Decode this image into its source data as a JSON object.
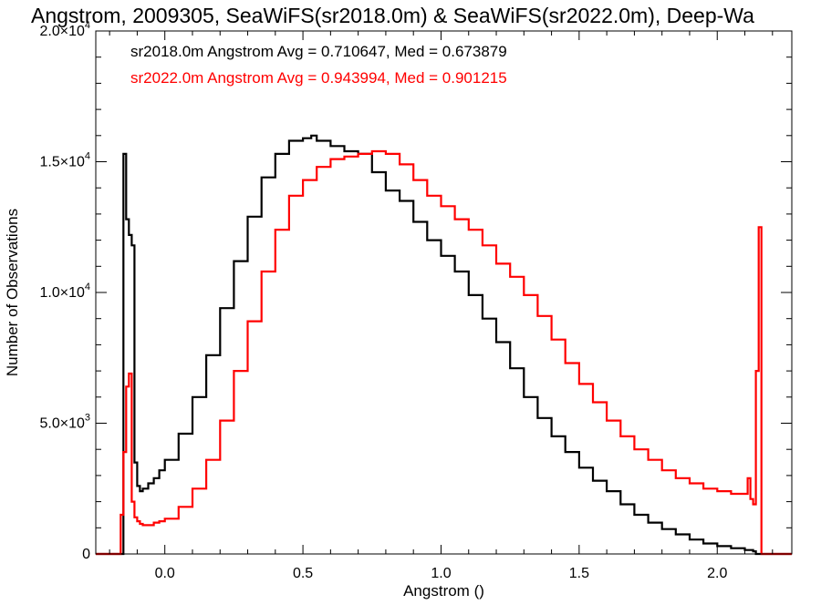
{
  "chart_data": {
    "type": "line",
    "title": "Angstrom, 2009305, SeaWiFS(sr2018.0m) & SeaWiFS(sr2022.0m), Deep-Wa",
    "xlabel": "Angstrom ()",
    "ylabel": "Number of Observations",
    "xlim": [
      -0.25,
      2.27
    ],
    "ylim": [
      0,
      20000
    ],
    "x_ticks": [
      {
        "value": 0.0,
        "label": "0.0"
      },
      {
        "value": 0.5,
        "label": "0.5"
      },
      {
        "value": 1.0,
        "label": "1.0"
      },
      {
        "value": 1.5,
        "label": "1.5"
      },
      {
        "value": 2.0,
        "label": "2.0"
      }
    ],
    "y_ticks": [
      {
        "value": 0,
        "mant": "0",
        "exp": ""
      },
      {
        "value": 5000,
        "mant": "5.0×10",
        "exp": "3"
      },
      {
        "value": 10000,
        "mant": "1.0×10",
        "exp": "4"
      },
      {
        "value": 15000,
        "mant": "1.5×10",
        "exp": "4"
      },
      {
        "value": 20000,
        "mant": "2.0×10",
        "exp": "4"
      }
    ],
    "grid": false,
    "annotations": [
      {
        "text": "sr2018.0m Angstrom Avg = 0.710647, Med = 0.673879",
        "color": "#000000"
      },
      {
        "text": "sr2022.0m Angstrom Avg = 0.943994, Med = 0.901215",
        "color": "#ff0000"
      }
    ],
    "series": [
      {
        "name": "sr2018.0m",
        "color": "#000000",
        "x": [
          -0.25,
          -0.16,
          -0.15,
          -0.14,
          -0.13,
          -0.12,
          -0.11,
          -0.1,
          -0.09,
          -0.08,
          -0.06,
          -0.04,
          -0.02,
          0.0,
          0.05,
          0.1,
          0.15,
          0.2,
          0.25,
          0.3,
          0.35,
          0.4,
          0.45,
          0.5,
          0.53,
          0.55,
          0.6,
          0.65,
          0.7,
          0.75,
          0.8,
          0.85,
          0.9,
          0.95,
          1.0,
          1.05,
          1.1,
          1.15,
          1.2,
          1.25,
          1.3,
          1.35,
          1.4,
          1.45,
          1.5,
          1.55,
          1.6,
          1.65,
          1.7,
          1.75,
          1.8,
          1.85,
          1.9,
          1.95,
          2.0,
          2.05,
          2.1,
          2.13,
          2.14,
          2.27
        ],
        "y": [
          0,
          0,
          15300,
          12800,
          12200,
          11800,
          3500,
          2600,
          2400,
          2500,
          2700,
          2900,
          3200,
          3600,
          4600,
          6000,
          7600,
          9400,
          11200,
          12900,
          14400,
          15300,
          15800,
          15900,
          16000,
          15800,
          15600,
          15400,
          15300,
          14600,
          13900,
          13500,
          12700,
          12000,
          11400,
          10800,
          9900,
          9000,
          8100,
          7100,
          6000,
          5200,
          4500,
          3900,
          3300,
          2800,
          2400,
          1900,
          1500,
          1200,
          950,
          750,
          550,
          400,
          300,
          220,
          150,
          100,
          0,
          0
        ]
      },
      {
        "name": "sr2022.0m",
        "color": "#ff0000",
        "x": [
          -0.25,
          -0.17,
          -0.16,
          -0.15,
          -0.14,
          -0.13,
          -0.12,
          -0.11,
          -0.1,
          -0.09,
          -0.08,
          -0.06,
          -0.04,
          -0.02,
          0.0,
          0.05,
          0.1,
          0.15,
          0.2,
          0.25,
          0.3,
          0.35,
          0.4,
          0.45,
          0.5,
          0.55,
          0.6,
          0.65,
          0.7,
          0.75,
          0.8,
          0.85,
          0.9,
          0.95,
          1.0,
          1.05,
          1.1,
          1.15,
          1.2,
          1.25,
          1.3,
          1.35,
          1.4,
          1.45,
          1.5,
          1.55,
          1.6,
          1.65,
          1.7,
          1.75,
          1.8,
          1.85,
          1.9,
          1.95,
          2.0,
          2.05,
          2.1,
          2.11,
          2.12,
          2.13,
          2.14,
          2.15,
          2.16,
          2.27
        ],
        "y": [
          0,
          0,
          1500,
          3900,
          6400,
          6900,
          2000,
          1400,
          1250,
          1150,
          1100,
          1100,
          1200,
          1250,
          1350,
          1800,
          2500,
          3600,
          5100,
          7000,
          8900,
          10800,
          12400,
          13700,
          14300,
          14800,
          15100,
          15200,
          15300,
          15400,
          15300,
          14900,
          14300,
          13700,
          13300,
          12800,
          12400,
          11800,
          11100,
          10600,
          9900,
          9100,
          8200,
          7300,
          6500,
          5800,
          5100,
          4500,
          4000,
          3600,
          3200,
          2900,
          2700,
          2500,
          2400,
          2300,
          2300,
          2900,
          2100,
          1900,
          7000,
          12500,
          0,
          0
        ]
      }
    ]
  }
}
